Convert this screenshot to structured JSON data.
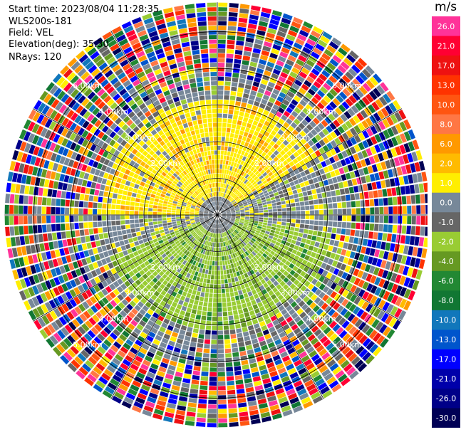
{
  "header": {
    "start_time": "Start time: 2023/08/04 11:28:35",
    "instrument": "WLS200s-181",
    "field": "Field: VEL",
    "elevation": "Elevation(deg): 35.30",
    "nrays": "NRays: 120"
  },
  "chart_data": {
    "type": "heatmap",
    "projection": "polar-ppi",
    "unit": "m/s",
    "nrays": 120,
    "range_rings_km": [
      1.0,
      2.0,
      3.0,
      4.0,
      5.0
    ],
    "ring_labels": [
      "1.00km",
      "2.00km",
      "3.00km",
      "4.00km",
      "5.00km"
    ],
    "spokes_deg": [
      0,
      30,
      60,
      90,
      120,
      150,
      180,
      210,
      240,
      270,
      300,
      330
    ],
    "max_range_km": 5.8,
    "colorbar": {
      "ticks": [
        "26.0",
        "21.0",
        "17.0",
        "13.0",
        "10.0",
        "8.0",
        "6.0",
        "2.0",
        "1.0",
        "0.0",
        "-1.0",
        "-2.0",
        "-4.0",
        "-6.0",
        "-8.0",
        "-10.0",
        "-13.0",
        "-17.0",
        "-21.0",
        "-26.0",
        "-30.0"
      ],
      "colors": [
        "#ff3399",
        "#ff0033",
        "#ee1111",
        "#ff3300",
        "#ff5511",
        "#ff7744",
        "#ff9900",
        "#ffbb00",
        "#ffee00",
        "#778899",
        "#666666",
        "#99cc33",
        "#669922",
        "#228833",
        "#117733",
        "#1177bb",
        "#0055cc",
        "#0000ff",
        "#0000aa",
        "#000088",
        "#000055"
      ]
    },
    "pattern": {
      "near_range_km": 2.5,
      "positive_sector_deg": [
        270,
        60
      ],
      "negative_sector_deg": [
        100,
        250
      ],
      "noise_beyond_km": 3.0
    }
  }
}
